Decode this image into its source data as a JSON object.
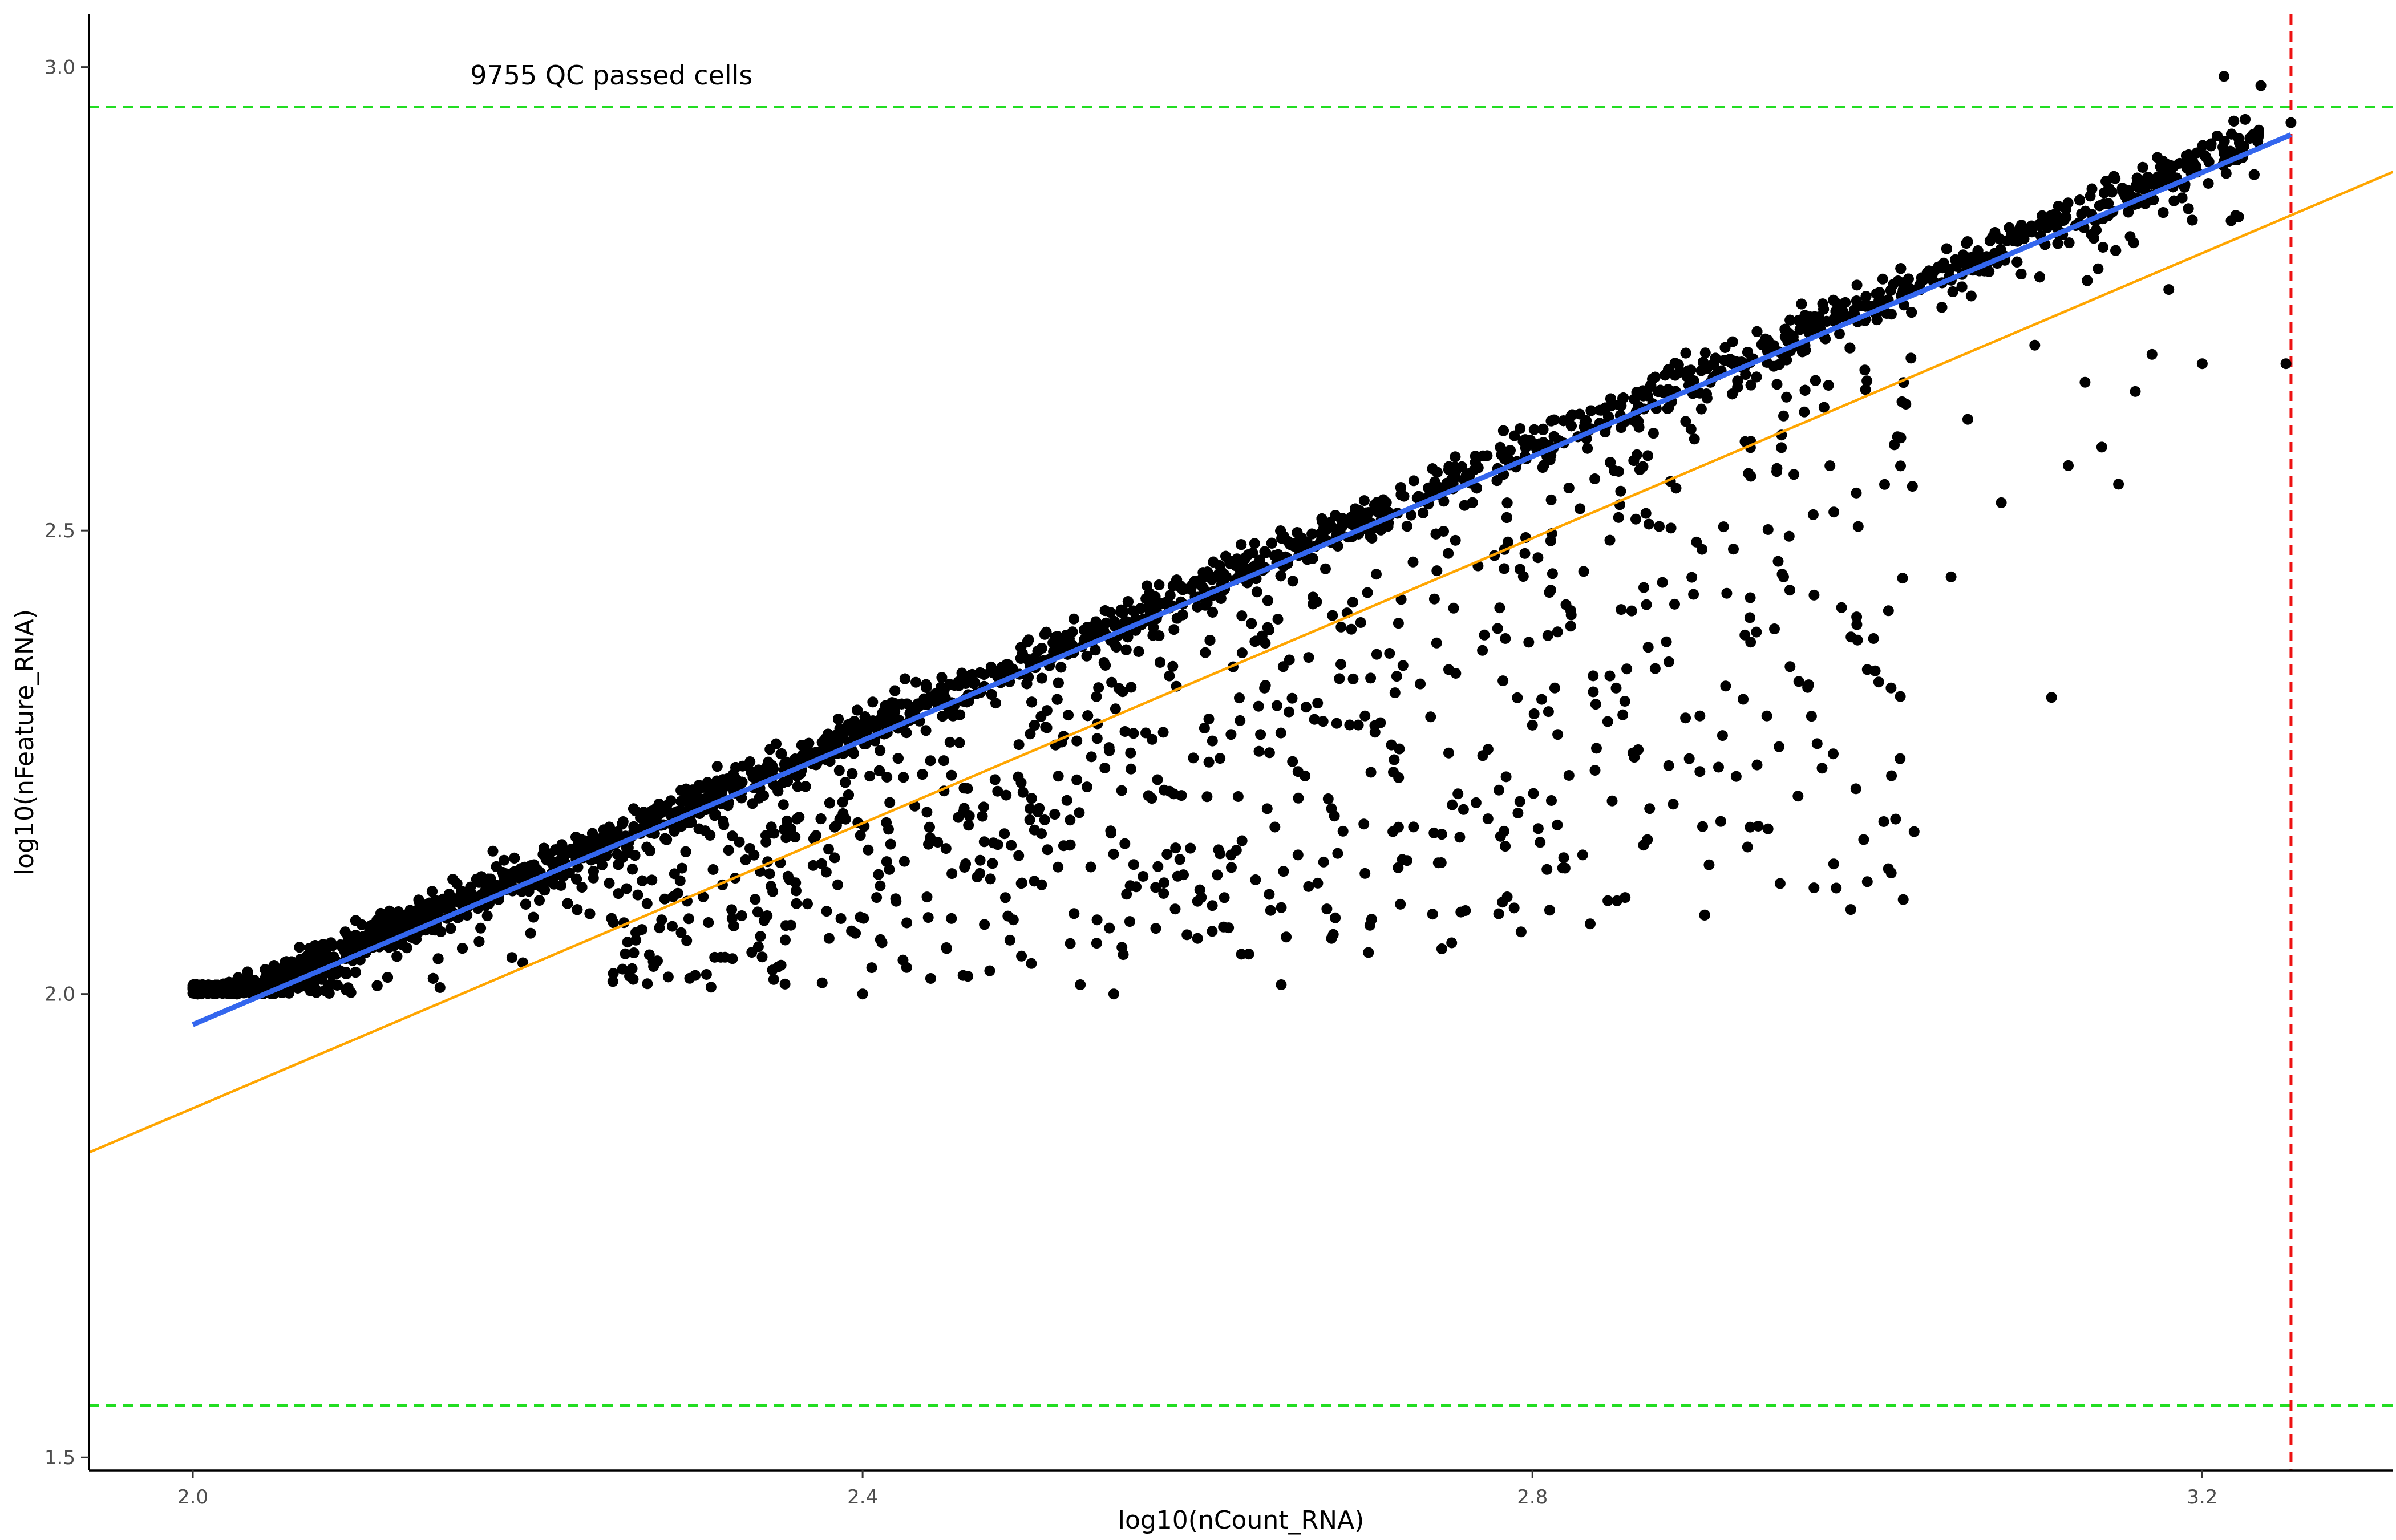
{
  "chart_data": {
    "type": "scatter",
    "xlabel": "log10(nCount_RNA)",
    "ylabel": "log10(nFeature_RNA)",
    "xlim": [
      1.938,
      3.314
    ],
    "ylim": [
      1.486,
      3.057
    ],
    "xticks": [
      2.0,
      2.4,
      2.8,
      3.2
    ],
    "xtick_labels": [
      "2.0",
      "2.4",
      "2.8",
      "3.2"
    ],
    "yticks": [
      1.5,
      2.0,
      2.5,
      3.0
    ],
    "ytick_labels": [
      "1.5",
      "2.0",
      "2.5",
      "3.0"
    ],
    "grid": false,
    "annotation": {
      "text": "9755 QC passed cells",
      "x": 2.25,
      "y": 2.99
    },
    "reference_lines": {
      "horizontal_dashed": {
        "color": "#22dd22",
        "y": [
          1.556,
          2.957
        ]
      },
      "vertical_dashed": {
        "color": "#ee1111",
        "x": 3.253
      }
    },
    "fit_lines": [
      {
        "color": "#3366ee",
        "x": [
          2.0,
          3.253
        ],
        "y": [
          1.967,
          2.927
        ]
      },
      {
        "color": "#ffa500",
        "x": [
          1.938,
          3.314
        ],
        "y": [
          1.829,
          2.887
        ]
      }
    ],
    "scatter_main_band": {
      "color": "#000000",
      "n_points": 9755,
      "x_range": [
        2.0,
        3.253
      ],
      "center_line": {
        "x": [
          2.0,
          3.253
        ],
        "y": [
          1.975,
          2.94
        ]
      },
      "spread_y": 0.03
    },
    "scatter_outliers": [
      [
        2.55,
        2.0
      ],
      [
        2.53,
        2.01
      ],
      [
        2.6,
        2.06
      ],
      [
        2.65,
        2.01
      ],
      [
        2.68,
        2.06
      ],
      [
        2.45,
        2.05
      ],
      [
        2.49,
        2.08
      ],
      [
        2.58,
        2.12
      ],
      [
        2.62,
        2.15
      ],
      [
        2.68,
        2.2
      ],
      [
        2.72,
        2.18
      ],
      [
        2.75,
        2.26
      ],
      [
        2.78,
        2.22
      ],
      [
        2.83,
        2.15
      ],
      [
        2.87,
        2.2
      ],
      [
        2.9,
        2.24
      ],
      [
        2.93,
        2.18
      ],
      [
        2.97,
        2.27
      ],
      [
        3.0,
        2.35
      ],
      [
        2.95,
        2.45
      ],
      [
        3.05,
        2.45
      ],
      [
        3.08,
        2.53
      ],
      [
        3.12,
        2.57
      ],
      [
        3.14,
        2.59
      ],
      [
        3.16,
        2.65
      ],
      [
        3.2,
        2.68
      ],
      [
        3.25,
        2.68
      ],
      [
        3.17,
        2.69
      ],
      [
        3.11,
        2.32
      ],
      [
        3.15,
        2.55
      ],
      [
        2.9,
        2.3
      ],
      [
        2.85,
        2.33
      ],
      [
        2.8,
        2.29
      ],
      [
        2.75,
        2.35
      ],
      [
        2.7,
        2.3
      ],
      [
        2.66,
        2.24
      ],
      [
        2.62,
        2.28
      ],
      [
        2.58,
        2.22
      ],
      [
        2.52,
        2.16
      ],
      [
        2.47,
        2.13
      ],
      [
        2.42,
        2.1
      ],
      [
        2.38,
        2.06
      ],
      [
        2.34,
        2.04
      ],
      [
        2.3,
        2.02
      ],
      [
        2.28,
        2.08
      ],
      [
        2.36,
        2.12
      ],
      [
        2.44,
        2.18
      ],
      [
        2.56,
        2.26
      ],
      [
        2.64,
        2.33
      ],
      [
        2.72,
        2.4
      ],
      [
        2.82,
        2.42
      ],
      [
        2.88,
        2.38
      ],
      [
        2.92,
        2.48
      ],
      [
        2.98,
        2.52
      ],
      [
        3.02,
        2.6
      ],
      [
        3.06,
        2.62
      ],
      [
        3.1,
        2.7
      ],
      [
        3.13,
        2.66
      ],
      [
        3.22,
        2.84
      ],
      [
        3.18,
        2.76
      ],
      [
        2.5,
        2.2
      ],
      [
        2.6,
        2.1
      ],
      [
        2.7,
        2.13
      ],
      [
        2.76,
        2.09
      ],
      [
        2.66,
        2.15
      ],
      [
        2.54,
        2.08
      ],
      [
        2.46,
        2.02
      ],
      [
        2.4,
        2.0
      ],
      [
        2.86,
        2.26
      ],
      [
        2.94,
        2.3
      ]
    ],
    "corner_points": [
      [
        3.213,
        2.99
      ],
      [
        3.235,
        2.98
      ],
      [
        3.253,
        2.94
      ]
    ]
  }
}
